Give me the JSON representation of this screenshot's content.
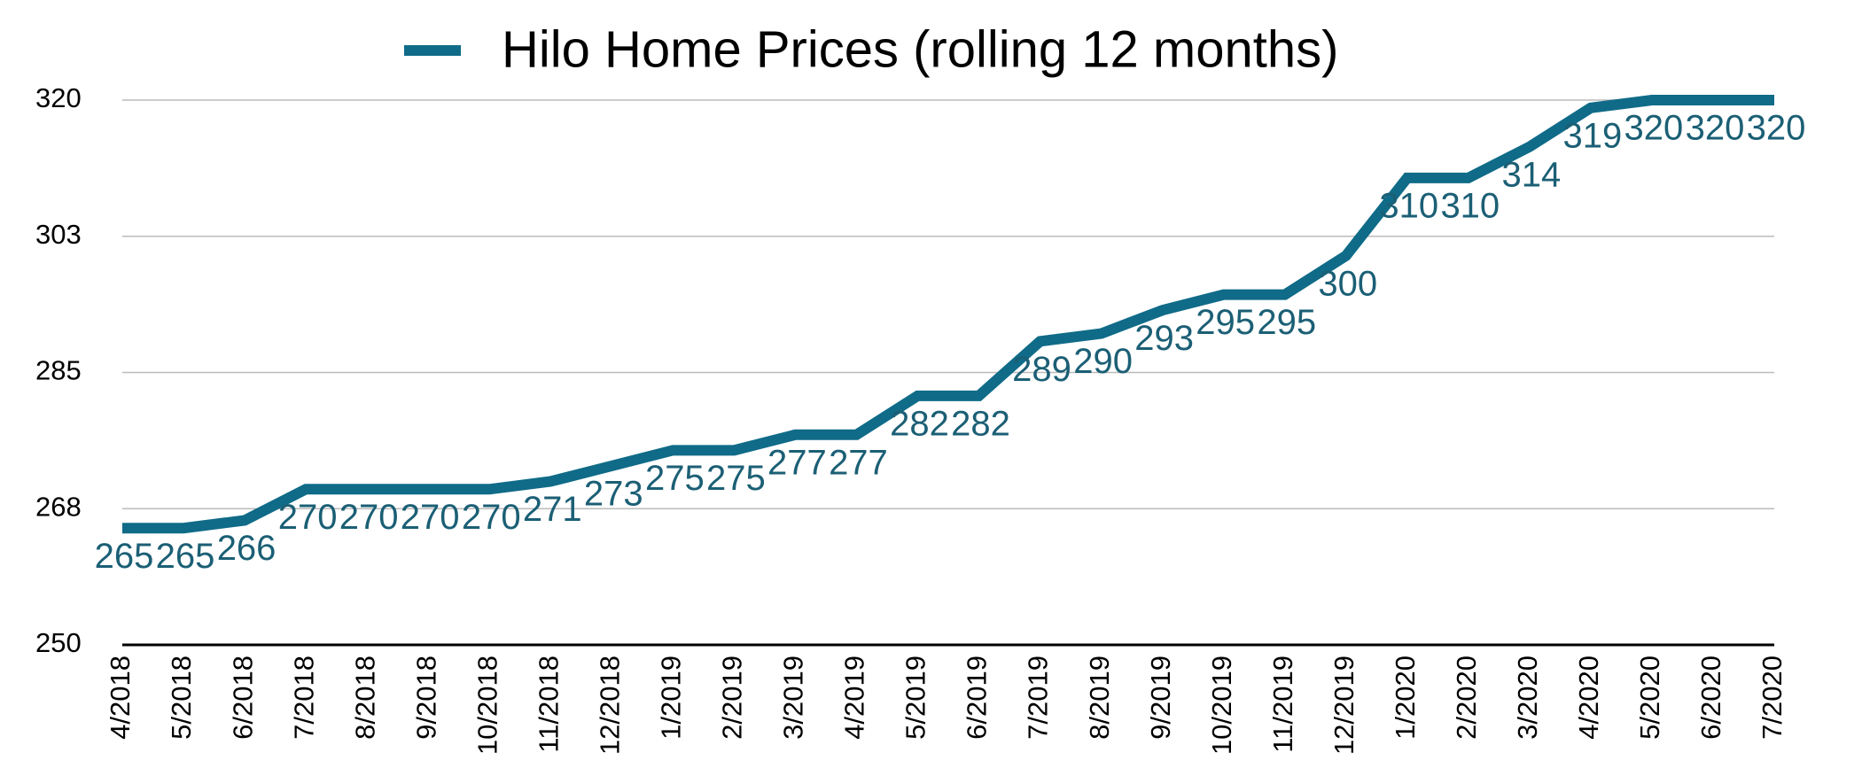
{
  "chart_data": {
    "type": "line",
    "categories": [
      "4/2018",
      "5/2018",
      "6/2018",
      "7/2018",
      "8/2018",
      "9/2018",
      "10/2018",
      "11/2018",
      "12/2018",
      "1/2019",
      "2/2019",
      "3/2019",
      "4/2019",
      "5/2019",
      "6/2019",
      "7/2019",
      "8/2019",
      "9/2019",
      "10/2019",
      "11/2019",
      "12/2019",
      "1/2020",
      "2/2020",
      "3/2020",
      "4/2020",
      "5/2020",
      "6/2020",
      "7/2020"
    ],
    "series": [
      {
        "name": "Hilo Home Prices (rolling 12 months)",
        "color": "#0f6b88",
        "values": [
          265,
          265,
          266,
          270,
          270,
          270,
          270,
          271,
          273,
          275,
          275,
          277,
          277,
          282,
          282,
          289,
          290,
          293,
          295,
          295,
          300,
          310,
          310,
          314,
          319,
          320,
          320,
          320
        ]
      }
    ],
    "ylim": [
      250,
      320
    ],
    "yticks": [
      250,
      {
        "value": 267.5,
        "label": "268"
      },
      285,
      {
        "value": 302.5,
        "label": "303"
      },
      320
    ],
    "grid": true,
    "legend": "top"
  }
}
